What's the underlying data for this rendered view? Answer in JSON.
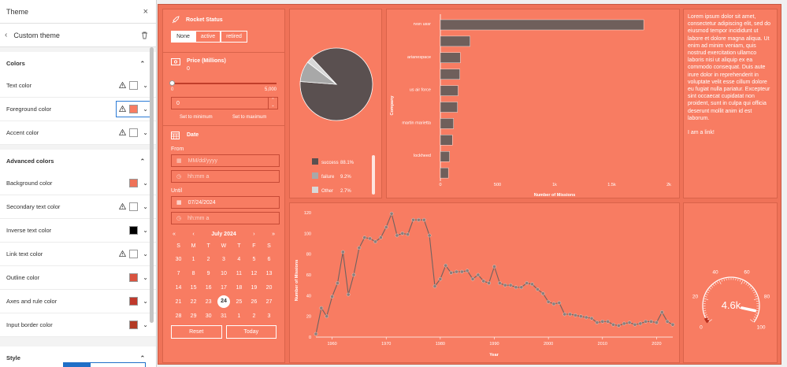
{
  "panel": {
    "title": "Theme",
    "subtitle": "Custom theme",
    "colors_head": "Colors",
    "color_rows": [
      {
        "label": "Text color",
        "swatch": "#ffffff",
        "warn": true
      },
      {
        "label": "Foreground color",
        "swatch": "#f87c62",
        "warn": true
      },
      {
        "label": "Accent color",
        "swatch": "#ffffff",
        "warn": true
      }
    ],
    "adv_head": "Advanced colors",
    "adv_rows": [
      {
        "label": "Background color",
        "swatch": "#ef7258",
        "warn": false
      },
      {
        "label": "Secondary text color",
        "swatch": "#ffffff",
        "warn": true
      },
      {
        "label": "Inverse text color",
        "swatch": "#000000",
        "warn": false
      },
      {
        "label": "Link text color",
        "swatch": "#ffffff",
        "warn": true
      },
      {
        "label": "Outline color",
        "swatch": "#d9533f",
        "warn": false
      },
      {
        "label": "Axes and rule color",
        "swatch": "#c0392b",
        "warn": false
      },
      {
        "label": "Input border color",
        "swatch": "#b33a25",
        "warn": false
      }
    ],
    "style_head": "Style"
  },
  "rocket": {
    "title": "Rocket Status",
    "buttons": [
      "None",
      "active",
      "retired"
    ]
  },
  "price": {
    "title": "Price (Millions)",
    "value": "0",
    "min": "0",
    "max": "5,000",
    "input": "0",
    "set_min": "Set to minimum",
    "set_max": "Set to maximum"
  },
  "date": {
    "title": "Date",
    "from": "From",
    "from_ph": "MM/dd/yyyy",
    "from_time": "hh:mm a",
    "until": "Until",
    "until_val": "07/24/2024",
    "until_time": "hh:mm a",
    "month": "July 2024",
    "weekdays": [
      "S",
      "M",
      "T",
      "W",
      "T",
      "F",
      "S"
    ],
    "weeks": [
      [
        "30",
        "1",
        "2",
        "3",
        "4",
        "5",
        "6"
      ],
      [
        "7",
        "8",
        "9",
        "10",
        "11",
        "12",
        "13"
      ],
      [
        "14",
        "15",
        "16",
        "17",
        "18",
        "19",
        "20"
      ],
      [
        "21",
        "22",
        "23",
        "24",
        "25",
        "26",
        "27"
      ],
      [
        "28",
        "29",
        "30",
        "31",
        "1",
        "2",
        "3"
      ]
    ],
    "selected": "24",
    "reset": "Reset",
    "today": "Today"
  },
  "pie": {
    "legend": [
      {
        "label": "success",
        "pct": "88.1%",
        "color": "#5a5050"
      },
      {
        "label": "failure",
        "pct": "9.2%",
        "color": "#a8a8a8"
      },
      {
        "label": "Other",
        "pct": "2.7%",
        "color": "#d8d8d8"
      }
    ]
  },
  "text_card": {
    "body": "Lorem ipsum dolor sit amet, consectetur adipiscing elit, sed do eiusmod tempor incididunt ut labore et dolore magna aliqua. Ut enim ad minim veniam, quis nostrud exercitation ullamco laboris nisi ut aliquip ex ea commodo consequat. Duis aute irure dolor in reprehenderit in voluptate velit esse cillum dolore eu fugiat nulla pariatur. Excepteur sint occaecat cupidatat non proident, sunt in culpa qui officia deserunt mollit anim id est laborum.",
    "link": "I am a link!"
  },
  "gauge": {
    "value": 4600,
    "label": "4.6k",
    "ticks": [
      "0",
      "20",
      "40",
      "60",
      "80",
      "100"
    ]
  },
  "chart_data": [
    {
      "type": "pie",
      "title": "",
      "slices": [
        {
          "label": "success",
          "value": 88.1
        },
        {
          "label": "failure",
          "value": 9.2
        },
        {
          "label": "Other",
          "value": 2.7
        }
      ]
    },
    {
      "type": "bar",
      "orientation": "horizontal",
      "title": "",
      "ylabel": "Company",
      "xlabel": "Number of Missions",
      "categories": [
        "rvsn ussr",
        "",
        "arianespace",
        "",
        "us air force",
        "",
        "martin marietta",
        "",
        "lockheed",
        ""
      ],
      "values": [
        1780,
        260,
        175,
        170,
        155,
        150,
        115,
        105,
        80,
        70
      ],
      "xlim": [
        0,
        2000
      ],
      "xticks": [
        "0",
        "500",
        "1k",
        "1.5k",
        "2k"
      ]
    },
    {
      "type": "line",
      "title": "",
      "xlabel": "Year",
      "ylabel": "Number of Missions",
      "x": [
        1957,
        1958,
        1959,
        1960,
        1961,
        1962,
        1963,
        1964,
        1965,
        1966,
        1967,
        1968,
        1969,
        1970,
        1971,
        1972,
        1973,
        1974,
        1975,
        1976,
        1977,
        1978,
        1979,
        1980,
        1981,
        1982,
        1983,
        1984,
        1985,
        1986,
        1987,
        1988,
        1989,
        1990,
        1991,
        1992,
        1993,
        1994,
        1995,
        1996,
        1997,
        1998,
        1999,
        2000,
        2001,
        2002,
        2003,
        2004,
        2005,
        2006,
        2007,
        2008,
        2009,
        2010,
        2011,
        2012,
        2013,
        2014,
        2015,
        2016,
        2017,
        2018,
        2019,
        2020,
        2021,
        2022,
        2023
      ],
      "y": [
        3,
        28,
        20,
        39,
        52,
        82,
        41,
        60,
        86,
        96,
        95,
        92,
        96,
        106,
        119,
        98,
        100,
        99,
        113,
        113,
        113,
        98,
        49,
        56,
        69,
        62,
        63,
        63,
        64,
        56,
        60,
        54,
        52,
        68,
        52,
        50,
        50,
        48,
        48,
        52,
        51,
        46,
        42,
        34,
        32,
        33,
        22,
        22,
        21,
        20,
        19,
        18,
        14,
        15,
        15,
        12,
        11,
        13,
        14,
        12,
        13,
        15,
        15,
        14,
        24,
        15,
        12
      ],
      "xlim": [
        1957,
        2023
      ],
      "ylim": [
        0,
        120
      ],
      "xticks": [
        "1960",
        "1970",
        "1980",
        "1990",
        "2000",
        "2010",
        "2020"
      ],
      "yticks": [
        "0",
        "20",
        "40",
        "60",
        "80",
        "100",
        "120"
      ]
    }
  ]
}
